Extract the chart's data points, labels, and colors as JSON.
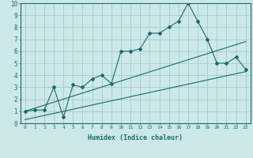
{
  "title": "",
  "xlabel": "Humidex (Indice chaleur)",
  "ylabel": "",
  "xlim": [
    -0.5,
    23.5
  ],
  "ylim": [
    0,
    10
  ],
  "xticks": [
    0,
    1,
    2,
    3,
    4,
    5,
    6,
    7,
    8,
    9,
    10,
    11,
    12,
    13,
    14,
    15,
    16,
    17,
    18,
    19,
    20,
    21,
    22,
    23
  ],
  "yticks": [
    0,
    1,
    2,
    3,
    4,
    5,
    6,
    7,
    8,
    9,
    10
  ],
  "bg_color": "#cce8e8",
  "grid_color": "#aacfcf",
  "line_color": "#1a6b6b",
  "main_x": [
    0,
    1,
    2,
    3,
    4,
    5,
    6,
    7,
    8,
    9,
    10,
    11,
    12,
    13,
    14,
    15,
    16,
    17,
    18,
    19,
    20,
    21,
    22,
    23
  ],
  "main_y": [
    1.0,
    1.1,
    1.1,
    3.0,
    0.5,
    3.2,
    3.0,
    3.7,
    4.0,
    3.3,
    6.0,
    6.0,
    6.2,
    7.5,
    7.5,
    8.0,
    8.5,
    10.0,
    8.5,
    7.0,
    5.0,
    5.0,
    5.5,
    4.5
  ],
  "line1_x": [
    0,
    23
  ],
  "line1_y": [
    1.0,
    6.8
  ],
  "line2_x": [
    0,
    23
  ],
  "line2_y": [
    0.3,
    4.3
  ]
}
